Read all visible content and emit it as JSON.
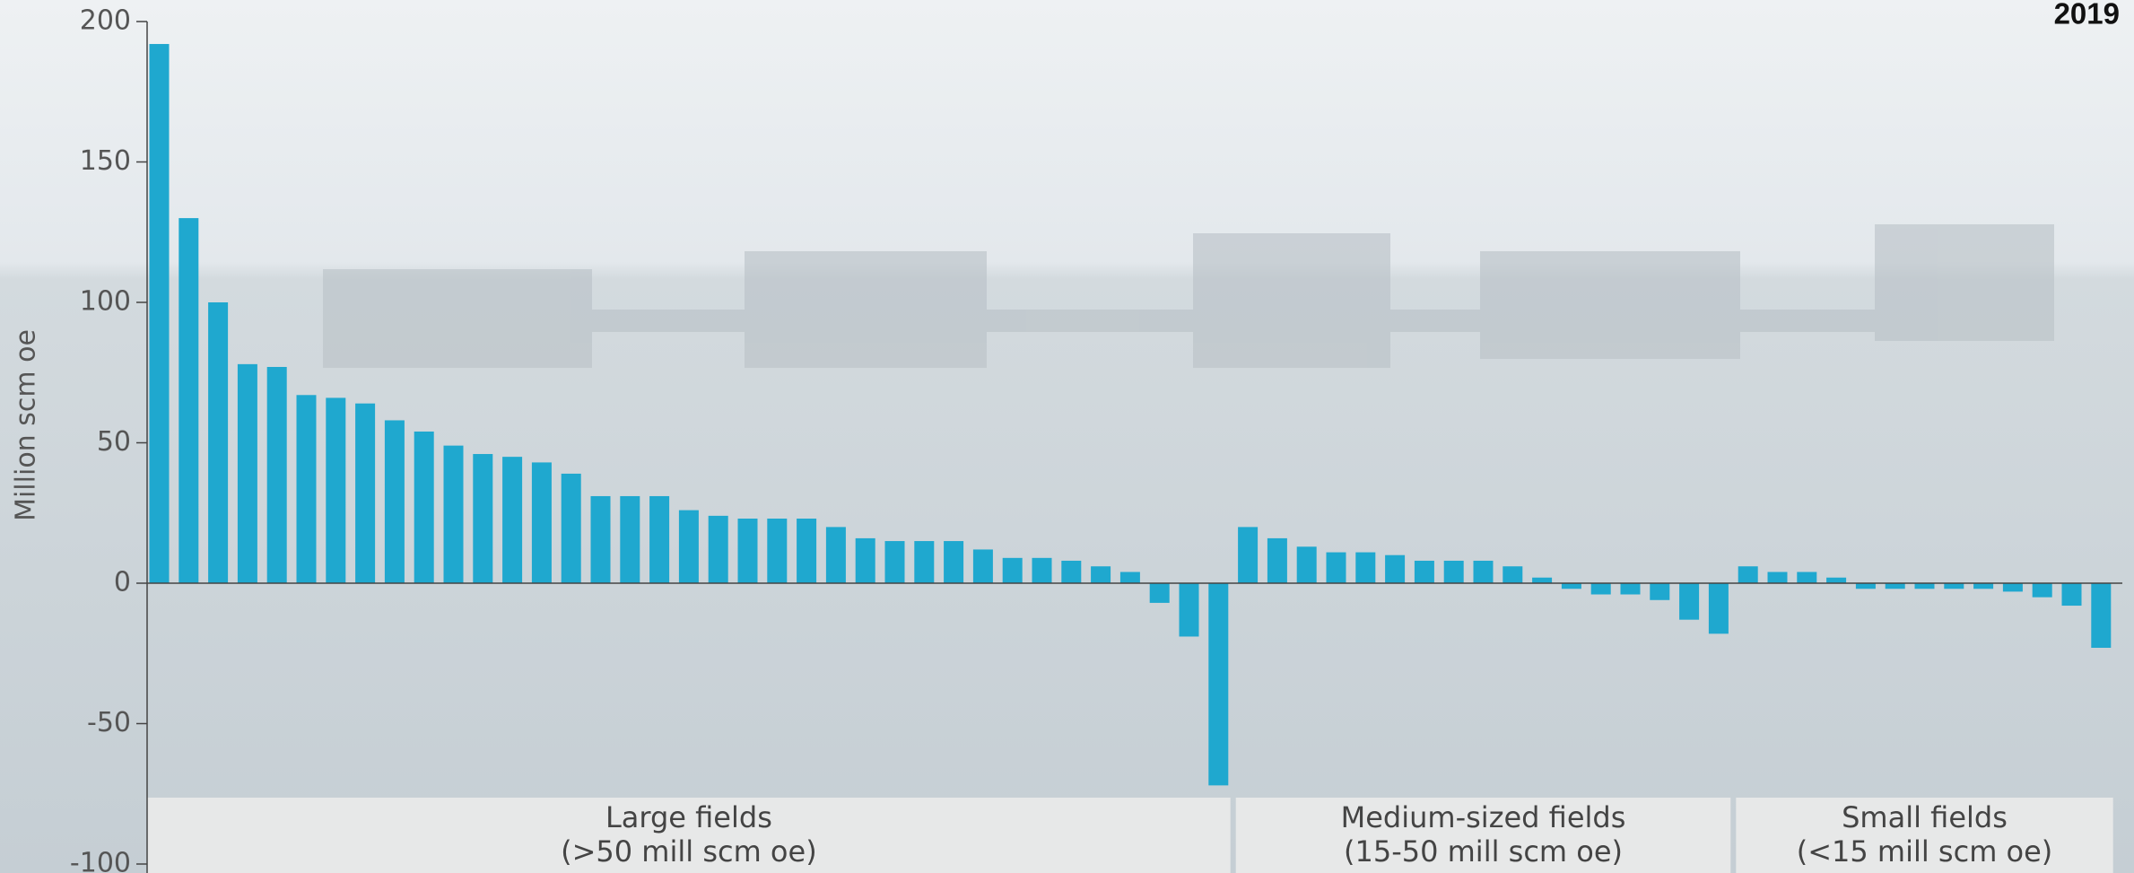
{
  "chart_data": {
    "type": "bar",
    "title": "2019",
    "y_label": "Million scm oe",
    "color": "#1fa8cf",
    "ylim": [
      -100,
      200
    ],
    "yticks": [
      -100,
      -50,
      0,
      50,
      100,
      150,
      200
    ],
    "groups": [
      {
        "label": [
          "Large fields",
          "(>50 mill scm oe)"
        ],
        "values": [
          192,
          130,
          100,
          78,
          77,
          67,
          66,
          64,
          58,
          54,
          49,
          46,
          45,
          43,
          39,
          31,
          31,
          31,
          26,
          24,
          23,
          23,
          23,
          20,
          16,
          15,
          15,
          15,
          12,
          9,
          9,
          8,
          6,
          4,
          -7,
          -19,
          -72
        ]
      },
      {
        "label": [
          "Medium-sized fields",
          "(15-50 mill scm oe)"
        ],
        "values": [
          20,
          16,
          13,
          11,
          11,
          10,
          8,
          8,
          8,
          6,
          2,
          -2,
          -4,
          -4,
          -6,
          -13,
          -18
        ]
      },
      {
        "label": [
          "Small fields",
          "(<15 mill scm oe)"
        ],
        "values": [
          6,
          4,
          4,
          2,
          -2,
          -2,
          -2,
          -2,
          -2,
          -3,
          -5,
          -8,
          -23
        ]
      }
    ]
  }
}
